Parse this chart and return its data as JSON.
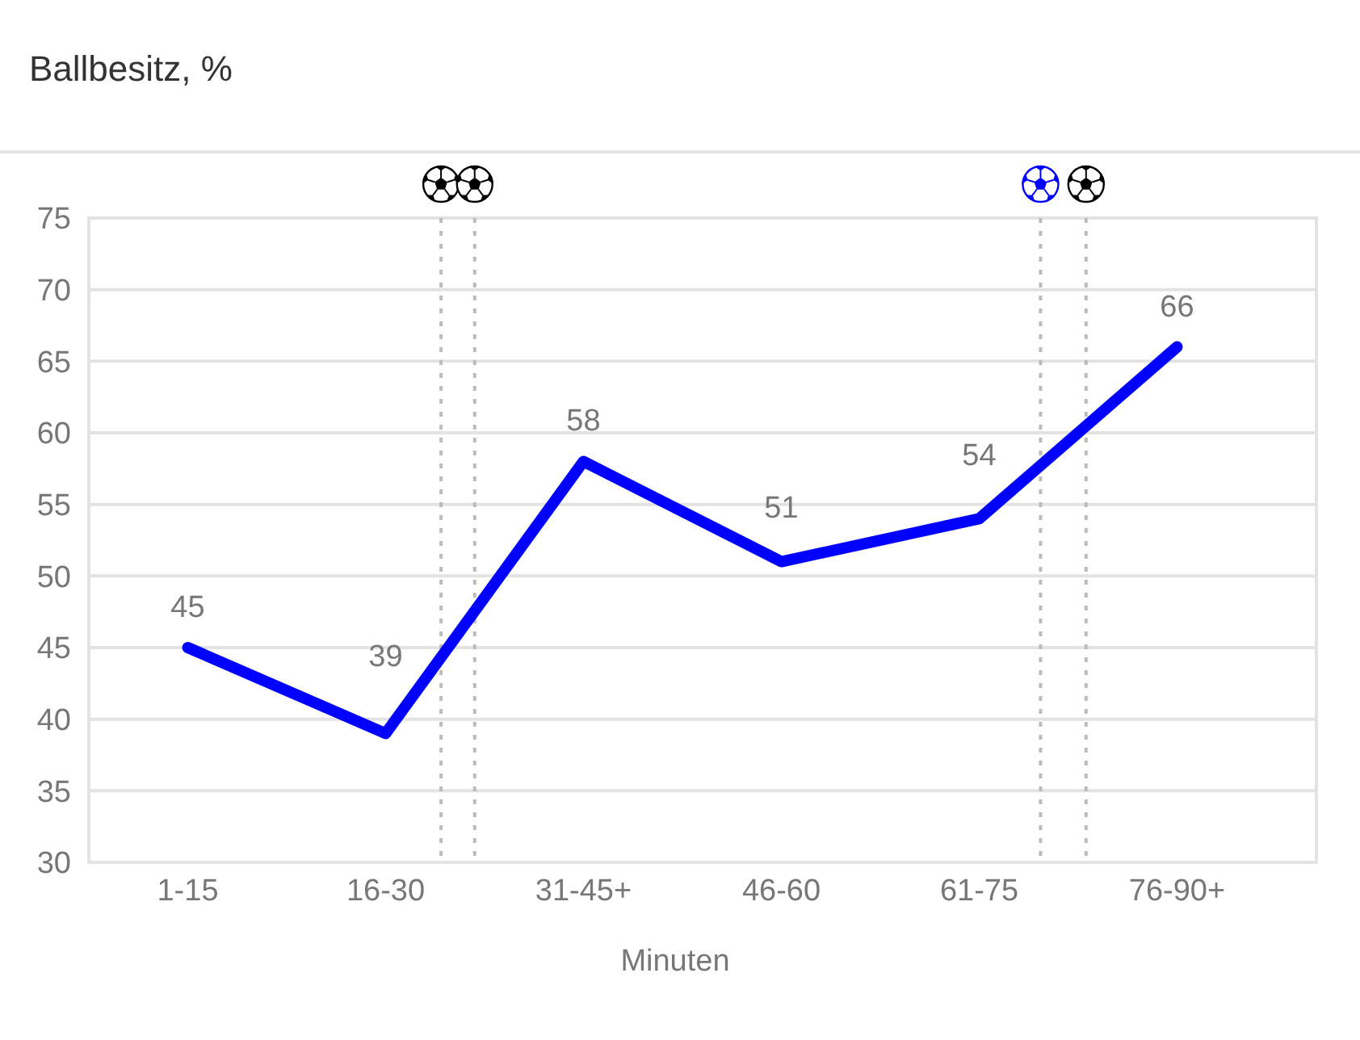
{
  "chart_data": {
    "type": "line",
    "title": "Ballbesitz, %",
    "xlabel": "Minuten",
    "categories": [
      "1-15",
      "16-30",
      "31-45+",
      "46-60",
      "61-75",
      "76-90+"
    ],
    "values": [
      45,
      39,
      58,
      51,
      54,
      66
    ],
    "color": "#0000ff",
    "ylim": [
      30,
      75
    ],
    "yticks": [
      30,
      35,
      40,
      45,
      50,
      55,
      60,
      65,
      70,
      75
    ],
    "grid": "y",
    "marker": "none",
    "line_style": "solid",
    "data_labels": true
  }
}
